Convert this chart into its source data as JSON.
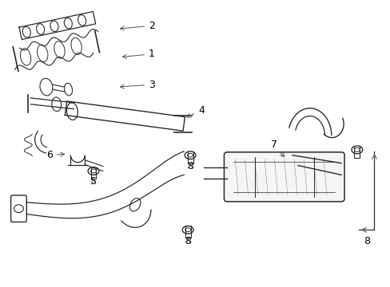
{
  "bg_color": "#ffffff",
  "line_color": "#2a2a2a",
  "label_color": "#000000",
  "arrow_color": "#555555",
  "fig_width": 4.89,
  "fig_height": 3.6,
  "dpi": 100,
  "font_size": 9
}
